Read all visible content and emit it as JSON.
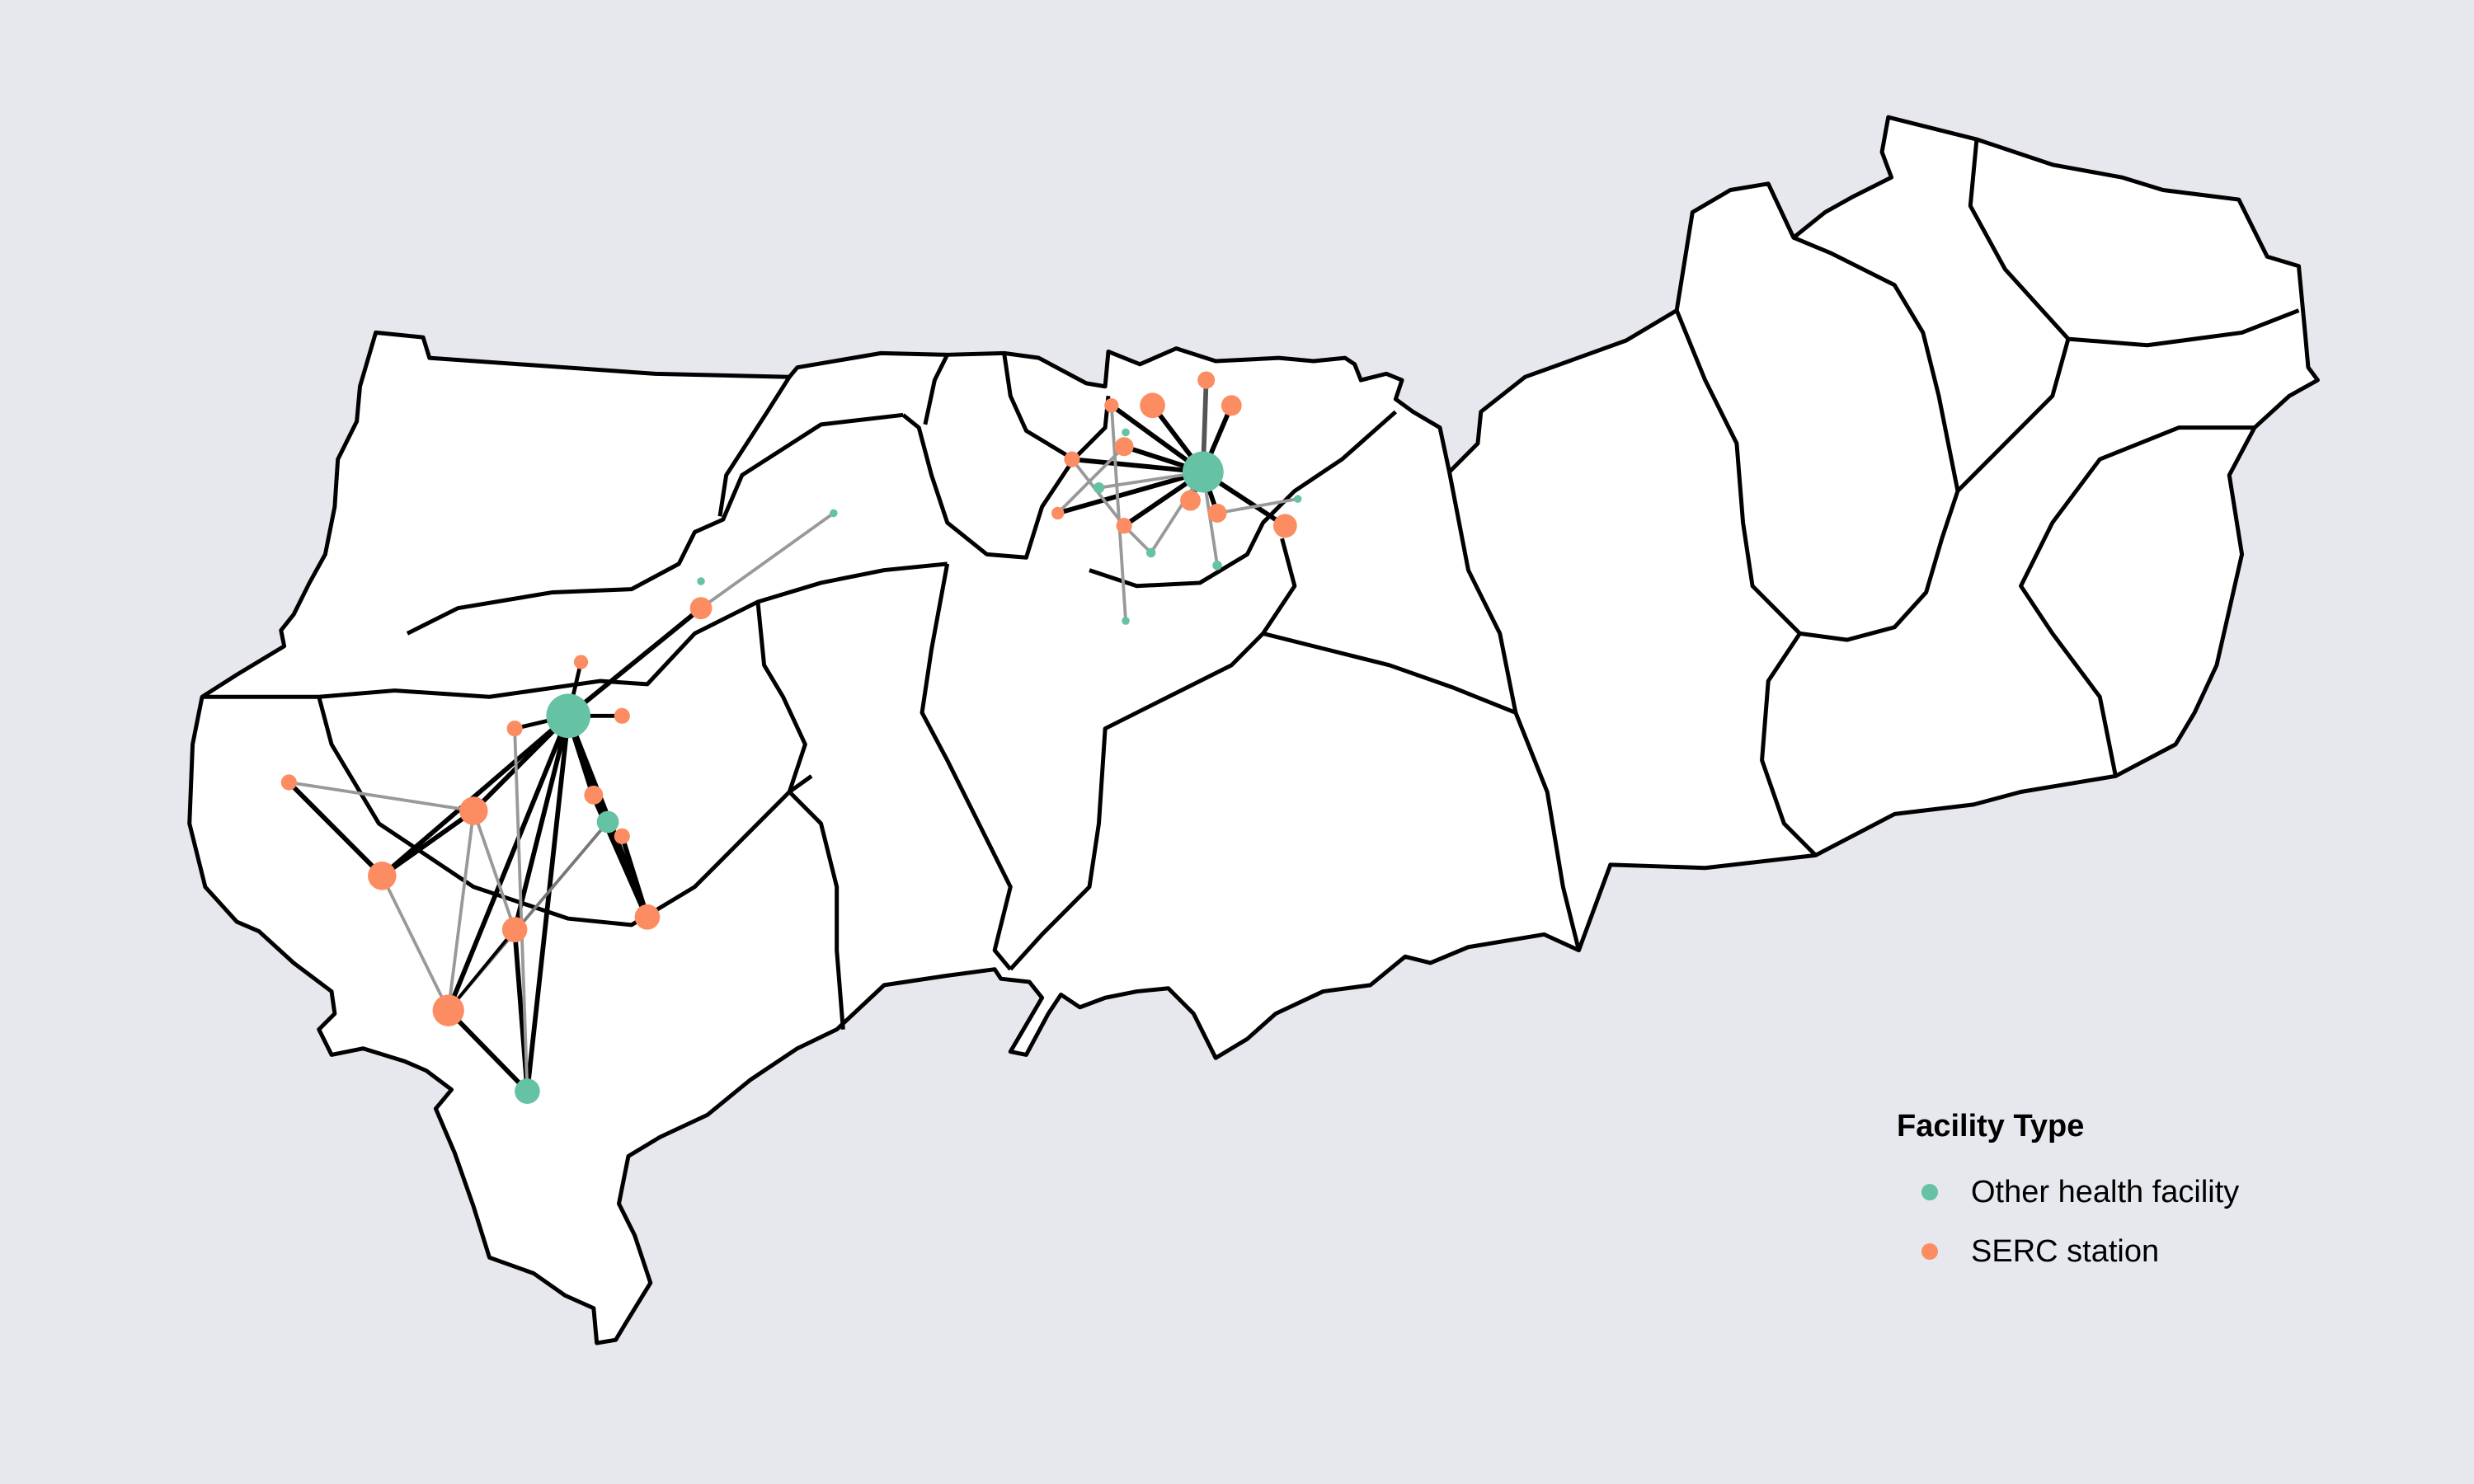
{
  "legend": {
    "title": "Facility Type",
    "items": [
      {
        "label": "Other health facility",
        "color": "#66c2a5"
      },
      {
        "label": "SERC station",
        "color": "#fc8d62"
      }
    ]
  },
  "colors": {
    "background": "#e7e8ee",
    "land": "#ffffff",
    "border": "#000000"
  }
}
